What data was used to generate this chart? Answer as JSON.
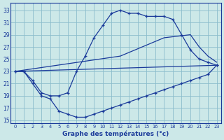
{
  "bg_color": "#cce8e8",
  "line_color": "#1a3a9a",
  "grid_color": "#8bbccc",
  "xlim": [
    -0.5,
    23.5
  ],
  "ylim": [
    14.5,
    34.2
  ],
  "yticks": [
    15,
    17,
    19,
    21,
    23,
    25,
    27,
    29,
    31,
    33
  ],
  "xticks": [
    0,
    1,
    2,
    3,
    4,
    5,
    6,
    7,
    8,
    9,
    10,
    11,
    12,
    13,
    14,
    15,
    16,
    17,
    18,
    19,
    20,
    21,
    22,
    23
  ],
  "xlabel": "Graphe des températures (°c)",
  "line1_x": [
    0,
    1,
    2,
    3,
    4,
    5,
    6,
    7,
    8,
    9,
    10,
    11,
    12,
    13,
    14,
    15,
    16,
    17,
    18,
    19,
    20,
    21,
    22,
    23
  ],
  "line1_y": [
    23.0,
    23.0,
    21.0,
    19.0,
    18.5,
    16.5,
    16.0,
    15.5,
    15.5,
    16.0,
    16.5,
    17.0,
    17.5,
    18.0,
    18.5,
    19.0,
    19.5,
    20.0,
    20.5,
    21.0,
    21.5,
    22.0,
    22.5,
    24.0
  ],
  "line2_x": [
    0,
    1,
    2,
    3,
    4,
    5,
    6,
    7,
    8,
    9,
    10,
    11,
    12,
    13,
    14,
    15,
    16,
    17,
    18,
    19,
    20,
    21,
    22,
    23
  ],
  "line2_y": [
    23.0,
    23.0,
    21.5,
    19.5,
    19.0,
    19.0,
    19.5,
    23.0,
    25.5,
    28.5,
    30.5,
    32.5,
    33.0,
    32.5,
    32.5,
    32.0,
    32.0,
    32.0,
    31.5,
    29.0,
    26.5,
    25.0,
    24.5,
    24.0
  ],
  "line3_x": [
    0,
    23
  ],
  "line3_y": [
    23.0,
    24.0
  ],
  "line4_x": [
    0,
    12,
    17,
    20,
    21,
    22,
    23
  ],
  "line4_y": [
    23.0,
    25.5,
    28.5,
    29.0,
    27.0,
    25.5,
    24.5
  ]
}
